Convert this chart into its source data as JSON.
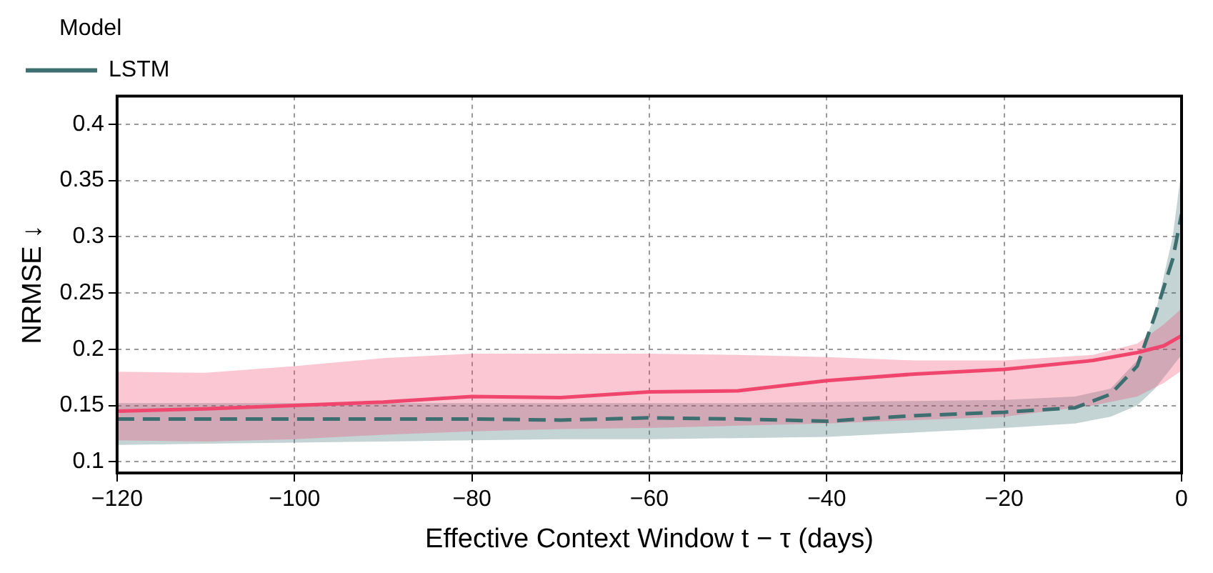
{
  "chart_data": {
    "type": "line",
    "xlabel": "Effective Context Window t − τ (days)",
    "ylabel": "NRMSE ↓",
    "legend_title": "Model",
    "legend": "top left",
    "grid": true,
    "xlim": [
      -120,
      0
    ],
    "ylim": [
      0.09,
      0.425
    ],
    "xticks": [
      {
        "value": -120,
        "label": "−120"
      },
      {
        "value": -100,
        "label": "−100"
      },
      {
        "value": -80,
        "label": "−80"
      },
      {
        "value": -60,
        "label": "−60"
      },
      {
        "value": -40,
        "label": "−40"
      },
      {
        "value": -20,
        "label": "−20"
      },
      0
    ],
    "yticks": [
      0.1,
      0.15,
      0.2,
      0.25,
      0.3,
      0.35,
      0.4
    ],
    "series": [
      {
        "color": "#f0466e",
        "line_style": "solid",
        "x": [
          -120,
          -110,
          -100,
          -90,
          -80,
          -70,
          -60,
          -50,
          -40,
          -30,
          -20,
          -10,
          -5,
          -2,
          0
        ],
        "values": [
          0.145,
          0.147,
          0.15,
          0.153,
          0.158,
          0.157,
          0.162,
          0.163,
          0.172,
          0.178,
          0.182,
          0.19,
          0.197,
          0.203,
          0.212
        ],
        "upper": [
          0.18,
          0.179,
          0.185,
          0.192,
          0.196,
          0.196,
          0.196,
          0.195,
          0.193,
          0.19,
          0.19,
          0.195,
          0.205,
          0.222,
          0.236
        ],
        "lower": [
          0.119,
          0.118,
          0.12,
          0.124,
          0.127,
          0.129,
          0.13,
          0.132,
          0.134,
          0.137,
          0.14,
          0.15,
          0.158,
          0.17,
          0.181
        ]
      },
      {
        "name": "LSTM",
        "color": "#3d6e70",
        "line_style": "dashed",
        "x": [
          -120,
          -110,
          -100,
          -90,
          -80,
          -70,
          -60,
          -50,
          -40,
          -30,
          -20,
          -12,
          -8,
          -5,
          -3,
          -1,
          0
        ],
        "values": [
          0.138,
          0.138,
          0.138,
          0.138,
          0.138,
          0.137,
          0.139,
          0.138,
          0.136,
          0.141,
          0.144,
          0.148,
          0.16,
          0.185,
          0.23,
          0.28,
          0.32
        ],
        "upper": [
          0.152,
          0.152,
          0.152,
          0.152,
          0.152,
          0.152,
          0.152,
          0.152,
          0.153,
          0.154,
          0.155,
          0.158,
          0.165,
          0.19,
          0.23,
          0.3,
          0.36
        ],
        "lower": [
          0.115,
          0.116,
          0.117,
          0.118,
          0.119,
          0.12,
          0.12,
          0.121,
          0.122,
          0.126,
          0.13,
          0.134,
          0.14,
          0.15,
          0.165,
          0.185,
          0.195
        ]
      }
    ]
  }
}
